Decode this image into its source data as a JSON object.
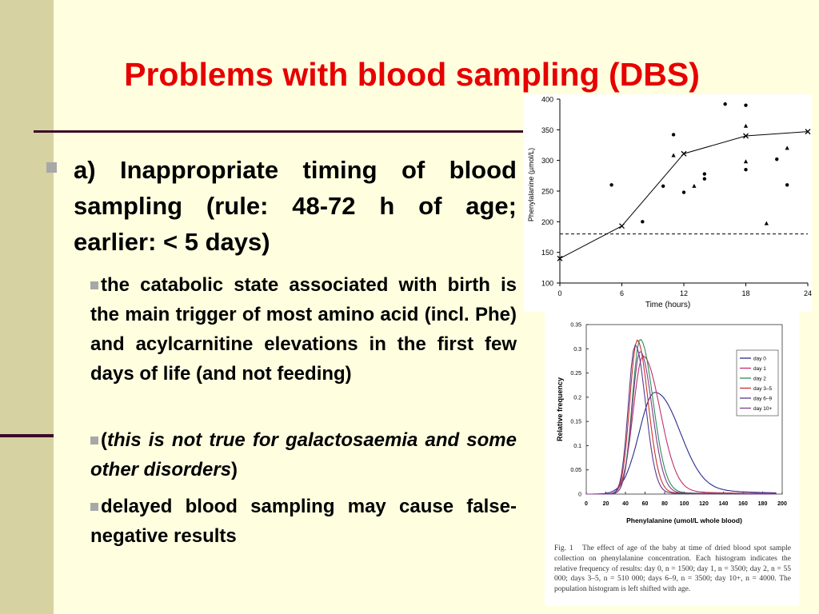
{
  "title": "Problems with blood sampling (DBS)",
  "bullet_a": "a) Inappropriate timing of blood sampling (rule: 48-72 h of age; earlier: < 5 days)",
  "sub_bullets": {
    "s1": "the catabolic state associated with birth is the main trigger of most amino acid (incl. Phe) and acylcarnitine elevations in the first few days of life (and not feeding)",
    "s2_open": "(",
    "s2_italic": "this is not true for galactosaemia and some other disorders",
    "s2_close": ")",
    "s3": "delayed blood sampling may cause false-negative results"
  },
  "chart_data": [
    {
      "type": "scatter",
      "ylabel": "Phenylalanine (µmol/L)",
      "xlabel": "Time (hours)",
      "xlim": [
        0,
        24
      ],
      "ylim": [
        100,
        400
      ],
      "x_ticks": [
        "0",
        "6",
        "12",
        "18",
        "24"
      ],
      "y_ticks": [
        "100",
        "150",
        "200",
        "250",
        "300",
        "350",
        "400"
      ],
      "cutoff": 180,
      "median_line": [
        [
          0,
          140
        ],
        [
          6,
          193
        ],
        [
          12,
          311
        ],
        [
          18,
          340
        ],
        [
          24,
          347
        ]
      ],
      "dots": [
        [
          5,
          260
        ],
        [
          8,
          200
        ],
        [
          10,
          258
        ],
        [
          11,
          342
        ],
        [
          12,
          248
        ],
        [
          14,
          270
        ],
        [
          14,
          278
        ],
        [
          16,
          392
        ],
        [
          18,
          285
        ],
        [
          18,
          390
        ],
        [
          21,
          302
        ],
        [
          22,
          260
        ]
      ],
      "triangles": [
        [
          11,
          308
        ],
        [
          13,
          258
        ],
        [
          18,
          356
        ],
        [
          18,
          298
        ],
        [
          20,
          197
        ],
        [
          22,
          320
        ]
      ]
    },
    {
      "type": "line",
      "ylabel": "Relative frequency",
      "xlabel": "Phenylalanine (umol/L whole blood)",
      "xlim": [
        0,
        200
      ],
      "ylim": [
        0,
        0.35
      ],
      "x_ticks": [
        "0",
        "20",
        "40",
        "60",
        "80",
        "100",
        "120",
        "140",
        "160",
        "180",
        "200"
      ],
      "y_ticks": [
        "0",
        "0.05",
        "0.1",
        "0.15",
        "0.2",
        "0.25",
        "0.3",
        "0.35"
      ],
      "series": [
        {
          "name": "day 0",
          "color": "#2B2B8C",
          "peak_x": 70,
          "peak_y": 0.21,
          "sl": 16,
          "sr": 24,
          "tail": 0.02
        },
        {
          "name": "day 1",
          "color": "#C0306A",
          "peak_x": 58,
          "peak_y": 0.285,
          "sl": 10,
          "sr": 17,
          "tail": 0.01
        },
        {
          "name": "day 2",
          "color": "#2E8B57",
          "peak_x": 55,
          "peak_y": 0.32,
          "sl": 8,
          "sr": 13,
          "tail": 0.005
        },
        {
          "name": "day 3–5",
          "color": "#C83232",
          "peak_x": 52,
          "peak_y": 0.318,
          "sl": 7.5,
          "sr": 11,
          "tail": 0.004
        },
        {
          "name": "day 6–9",
          "color": "#5A3A8C",
          "peak_x": 50,
          "peak_y": 0.308,
          "sl": 7,
          "sr": 10.5,
          "tail": 0.003
        },
        {
          "name": "day 10+",
          "color": "#7E3C8C",
          "peak_x": 55,
          "peak_y": 0.295,
          "sl": 8,
          "sr": 12,
          "tail": 0.004
        }
      ]
    }
  ],
  "caption": {
    "label": "Fig. 1",
    "text": "The effect of age of the baby at time of dried blood spot sample collection on phenylalanine concentration. Each histogram indicates the relative frequency of results: day 0, n = 1500; day 1, n = 3500; day 2, n = 55 000; days 3–5, n = 510 000; days 6–9, n = 3500; day 10+, n = 4000. The population histogram is left shifted with age."
  }
}
